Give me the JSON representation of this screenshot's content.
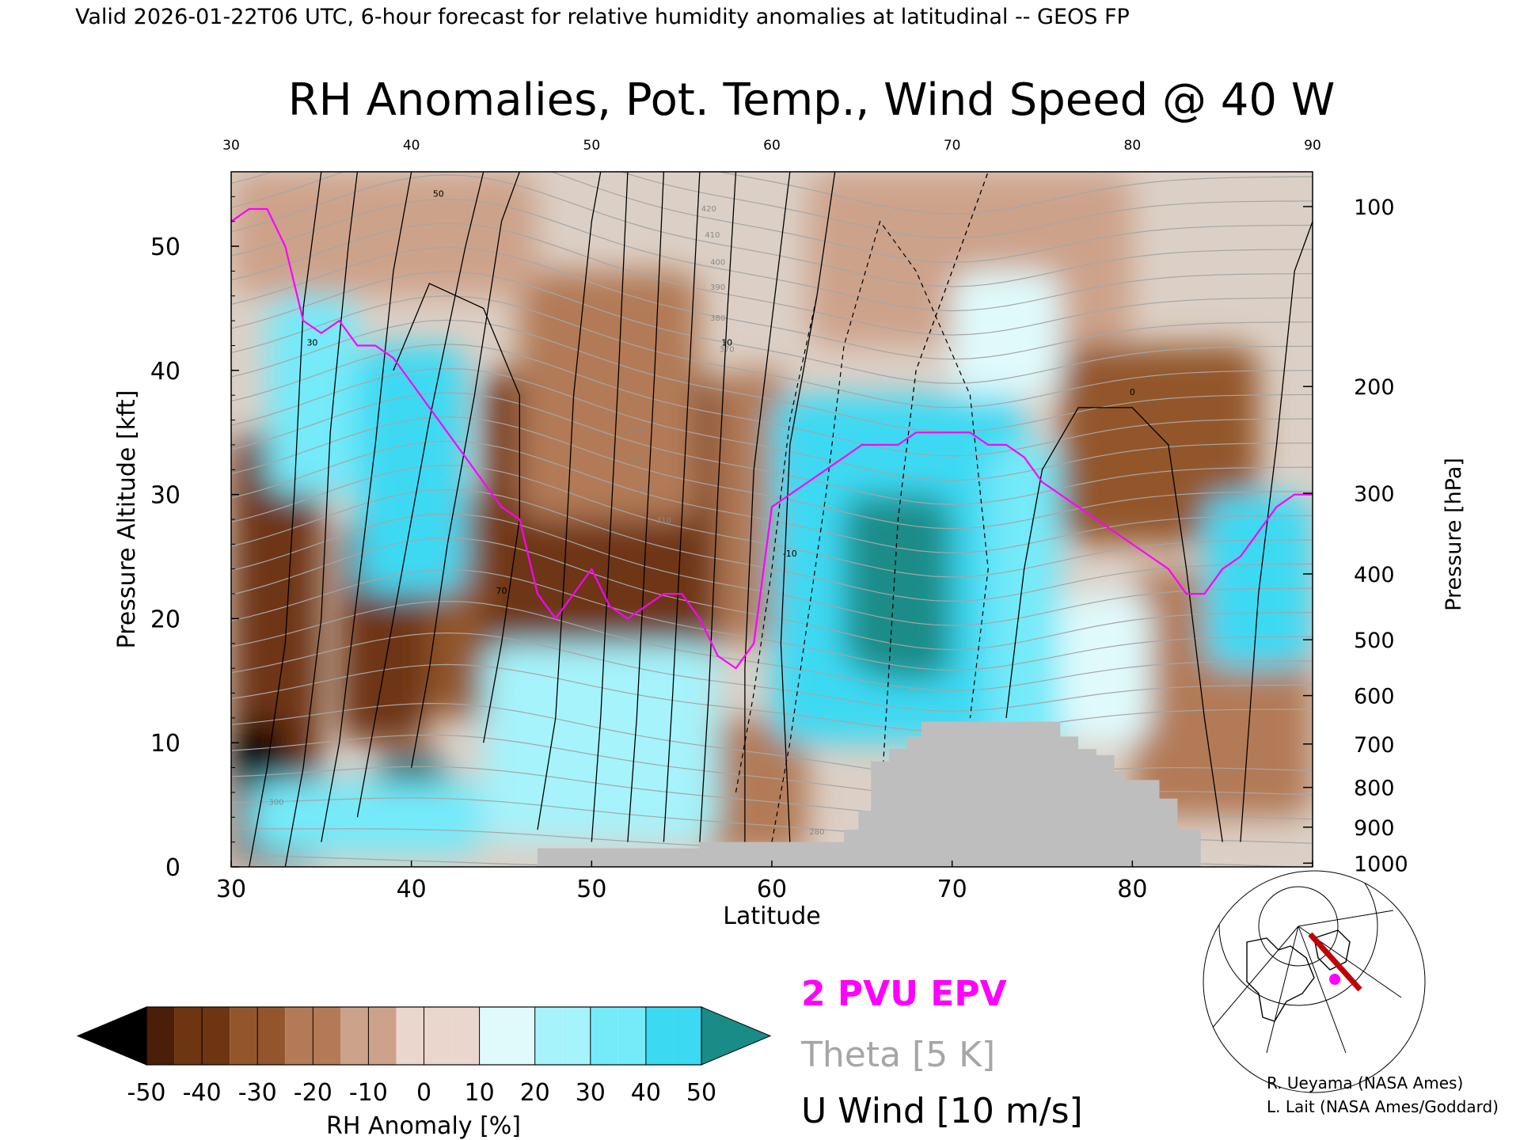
{
  "header": {
    "valid_line": "Valid 2026-01-22T06 UTC, 6-hour forecast for relative humidity anomalies at latitudinal -- GEOS FP"
  },
  "chart_data": {
    "type": "heatmap",
    "title": "RH Anomalies, Pot. Temp., Wind Speed @ 40 W",
    "xlabel": "Latitude",
    "ylabel": "Pressure Altitude [kft]",
    "y2label": "Pressure [hPa]",
    "xlim": [
      30,
      90
    ],
    "ylim": [
      0,
      56
    ],
    "x_ticks": [
      "30",
      "40",
      "50",
      "60",
      "70",
      "80",
      "90"
    ],
    "x_ticks_top": [
      "30",
      "40",
      "50",
      "60",
      "70",
      "80",
      "90"
    ],
    "y_ticks": [
      "0",
      "10",
      "20",
      "30",
      "40",
      "50"
    ],
    "pressure_ticks": [
      {
        "label": "100",
        "kft": 53.2
      },
      {
        "label": "200",
        "kft": 38.7
      },
      {
        "label": "300",
        "kft": 30.1
      },
      {
        "label": "400",
        "kft": 23.6
      },
      {
        "label": "500",
        "kft": 18.3
      },
      {
        "label": "600",
        "kft": 13.8
      },
      {
        "label": "700",
        "kft": 9.9
      },
      {
        "label": "800",
        "kft": 6.4
      },
      {
        "label": "900",
        "kft": 3.2
      },
      {
        "label": "1000",
        "kft": 0.3
      }
    ],
    "rh_regions": [
      {
        "x0": 30,
        "x1": 35,
        "y0": 0,
        "y1": 35,
        "value": -40
      },
      {
        "x0": 30,
        "x1": 33,
        "y0": 6,
        "y1": 12,
        "value": -55
      },
      {
        "x0": 38,
        "x1": 42,
        "y0": 5,
        "y1": 9,
        "value": -55
      },
      {
        "x0": 36,
        "x1": 41,
        "y0": 10,
        "y1": 28,
        "value": -35
      },
      {
        "x0": 41,
        "x1": 45,
        "y0": 12,
        "y1": 30,
        "value": -25
      },
      {
        "x0": 44,
        "x1": 57,
        "y0": 12,
        "y1": 40,
        "value": -35
      },
      {
        "x0": 46,
        "x1": 56,
        "y0": 28,
        "y1": 48,
        "value": -20
      },
      {
        "x0": 30,
        "x1": 47,
        "y0": 46,
        "y1": 56,
        "value": -5
      },
      {
        "x0": 57,
        "x1": 61,
        "y0": 18,
        "y1": 40,
        "value": -15
      },
      {
        "x0": 76,
        "x1": 87,
        "y0": 26,
        "y1": 42,
        "value": -30
      },
      {
        "x0": 62,
        "x1": 80,
        "y0": 42,
        "y1": 56,
        "value": -10
      },
      {
        "x0": 80,
        "x1": 90,
        "y0": 4,
        "y1": 24,
        "value": -20
      },
      {
        "x0": 56,
        "x1": 62,
        "y0": 1,
        "y1": 12,
        "value": -20
      },
      {
        "x0": 32,
        "x1": 37,
        "y0": 30,
        "y1": 46,
        "value": 35
      },
      {
        "x0": 37,
        "x1": 43,
        "y0": 22,
        "y1": 42,
        "value": 40
      },
      {
        "x0": 44,
        "x1": 57,
        "y0": 2,
        "y1": 18,
        "value": 25
      },
      {
        "x0": 31,
        "x1": 44,
        "y0": 1,
        "y1": 7,
        "value": 30
      },
      {
        "x0": 60,
        "x1": 74,
        "y0": 10,
        "y1": 38,
        "value": 40
      },
      {
        "x0": 65,
        "x1": 70,
        "y0": 15,
        "y1": 30,
        "value": 55
      },
      {
        "x0": 72,
        "x1": 76,
        "y0": 8,
        "y1": 34,
        "value": 30
      },
      {
        "x0": 84,
        "x1": 90,
        "y0": 16,
        "y1": 30,
        "value": 45
      },
      {
        "x0": 70,
        "x1": 76,
        "y0": 38,
        "y1": 48,
        "value": 10
      },
      {
        "x0": 76,
        "x1": 81,
        "y0": 10,
        "y1": 22,
        "value": 10
      },
      {
        "x0": 64,
        "x1": 66,
        "y0": 16,
        "y1": 30,
        "value": 50
      }
    ],
    "epv_2pvu": {
      "name": "2 PVU EPV",
      "color": "#ff00ff",
      "x": [
        30,
        31,
        32,
        33,
        34,
        35,
        36,
        37,
        38,
        39,
        40,
        41,
        42,
        43,
        44,
        45,
        46,
        47,
        48,
        49,
        50,
        51,
        52,
        53,
        54,
        55,
        56,
        57,
        58,
        59,
        60,
        61,
        62,
        63,
        64,
        65,
        66,
        67,
        68,
        69,
        70,
        71,
        72,
        73,
        74,
        75,
        76,
        77,
        78,
        79,
        80,
        81,
        82,
        83,
        84,
        85,
        86,
        87,
        88,
        89,
        90
      ],
      "y": [
        52,
        53,
        53,
        50,
        44,
        43,
        44,
        42,
        42,
        41,
        39,
        37,
        35,
        33,
        31,
        29,
        28,
        22,
        20,
        22,
        24,
        21,
        20,
        21,
        22,
        22,
        20,
        17,
        16,
        18,
        29,
        30,
        31,
        32,
        33,
        34,
        34,
        34,
        35,
        35,
        35,
        35,
        34,
        34,
        33,
        31,
        30,
        29,
        28,
        27,
        26,
        25,
        24,
        22,
        22,
        24,
        25,
        27,
        29,
        30,
        30
      ]
    },
    "theta_contours": {
      "name": "Theta [5 K]",
      "color": "#a6a6a6",
      "levels": [
        280,
        285,
        290,
        295,
        300,
        305,
        310,
        315,
        320,
        325,
        330,
        335,
        340,
        345,
        350,
        355,
        360,
        365,
        370,
        375,
        380,
        385,
        390,
        395,
        400,
        405,
        410,
        415,
        420
      ],
      "labeled": [
        "280",
        "300",
        "310",
        "320",
        "330",
        "340",
        "370",
        "380",
        "390",
        "400",
        "410",
        "420"
      ]
    },
    "u_wind_contours": {
      "name": "U Wind [10 m/s]",
      "color": "#000000",
      "labeled": [
        "-10",
        "0",
        "10",
        "30",
        "50",
        "70"
      ]
    },
    "terrain": {
      "color": "#bebebe",
      "x": [
        47,
        55.5,
        56,
        63.5,
        64,
        64.8,
        65.5,
        66.5,
        67.5,
        68.3,
        76,
        77,
        78,
        79,
        79.5,
        81.5,
        82.5,
        83.8
      ],
      "y": [
        1.5,
        1.5,
        2,
        2,
        3,
        4.5,
        8.5,
        9.5,
        10.5,
        11.7,
        10.5,
        9.5,
        9,
        7.7,
        7,
        5.5,
        3,
        1.5
      ]
    },
    "colorbar": {
      "label": "RH Anomaly [%]",
      "ticks": [
        "-50",
        "-40",
        "-30",
        "-20",
        "-10",
        "0",
        "10",
        "20",
        "30",
        "40",
        "50"
      ],
      "colors": [
        "#000000",
        "#4a1e08",
        "#6e3512",
        "#93562c",
        "#b27a56",
        "#cda28a",
        "#ead6cc",
        "#e0fafc",
        "#a6f3fb",
        "#75eaf9",
        "#3cd9f3",
        "#00a7cd",
        "#1a8c88"
      ]
    }
  },
  "legend": {
    "epv": "2 PVU EPV",
    "epv_color": "#ff00ff",
    "theta": "Theta [5 K]",
    "theta_color": "#a6a6a6",
    "wind": "U Wind [10 m/s]"
  },
  "credits": {
    "line1": "R. Ueyama (NASA Ames)",
    "line2": "L. Lait (NASA Ames/Goddard)"
  }
}
